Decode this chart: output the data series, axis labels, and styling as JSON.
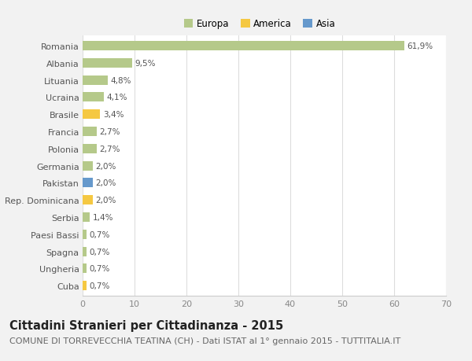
{
  "categories": [
    "Romania",
    "Albania",
    "Lituania",
    "Ucraina",
    "Brasile",
    "Francia",
    "Polonia",
    "Germania",
    "Pakistan",
    "Rep. Dominicana",
    "Serbia",
    "Paesi Bassi",
    "Spagna",
    "Ungheria",
    "Cuba"
  ],
  "values": [
    61.9,
    9.5,
    4.8,
    4.1,
    3.4,
    2.7,
    2.7,
    2.0,
    2.0,
    2.0,
    1.4,
    0.7,
    0.7,
    0.7,
    0.7
  ],
  "labels": [
    "61,9%",
    "9,5%",
    "4,8%",
    "4,1%",
    "3,4%",
    "2,7%",
    "2,7%",
    "2,0%",
    "2,0%",
    "2,0%",
    "1,4%",
    "0,7%",
    "0,7%",
    "0,7%",
    "0,7%"
  ],
  "continent": [
    "Europa",
    "Europa",
    "Europa",
    "Europa",
    "America",
    "Europa",
    "Europa",
    "Europa",
    "Asia",
    "America",
    "Europa",
    "Europa",
    "Europa",
    "Europa",
    "America"
  ],
  "colors": {
    "Europa": "#b5c98a",
    "America": "#f5c842",
    "Asia": "#6699cc"
  },
  "xlim": [
    0,
    70
  ],
  "xticks": [
    0,
    10,
    20,
    30,
    40,
    50,
    60,
    70
  ],
  "background_color": "#f2f2f2",
  "plot_bg_color": "#ffffff",
  "title": "Cittadini Stranieri per Cittadinanza - 2015",
  "subtitle": "COMUNE DI TORREVECCHIA TEATINA (CH) - Dati ISTAT al 1° gennaio 2015 - TUTTITALIA.IT",
  "title_fontsize": 10.5,
  "subtitle_fontsize": 8,
  "bar_height": 0.55,
  "label_fontsize": 7.5,
  "ytick_fontsize": 8,
  "xtick_fontsize": 8,
  "legend_fontsize": 8.5
}
